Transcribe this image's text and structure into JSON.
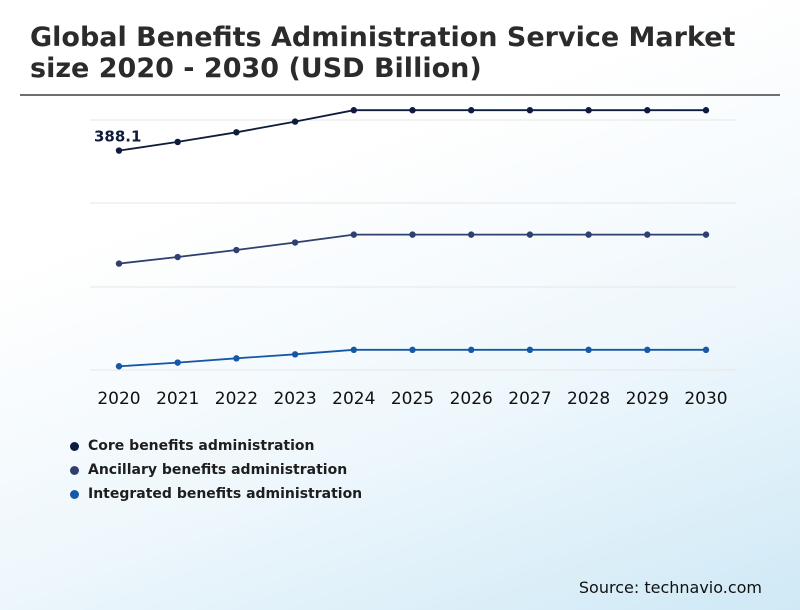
{
  "title": "Global Benefits Administration Service Market size 2020 - 2030 (USD Billion)",
  "source": "Source: technavio.com",
  "chart_data": {
    "type": "line",
    "title": "Global Benefits Administration Service Market size 2020 - 2030 (USD Billion)",
    "x": [
      "2020",
      "2021",
      "2022",
      "2023",
      "2024",
      "2025",
      "2026",
      "2027",
      "2028",
      "2029",
      "2030"
    ],
    "annotation": "388.1",
    "grid": true,
    "legend_position": "bottom-left",
    "series": [
      {
        "name": "Core benefits administration",
        "color": "#0d1b3c",
        "values": [
          388.1,
          396.5,
          405.9,
          416.3,
          427.4,
          427.4,
          427.4,
          427.4,
          427.4,
          427.4,
          427.4
        ]
      },
      {
        "name": "Ancillary benefits administration",
        "color": "#2f3f6f",
        "values": [
          278.0,
          284.4,
          291.2,
          298.5,
          306.2,
          306.2,
          306.2,
          306.2,
          306.2,
          306.2,
          306.2
        ]
      },
      {
        "name": "Integrated benefits administration",
        "color": "#1558a6",
        "values": [
          178.0,
          181.6,
          185.7,
          189.6,
          194.0,
          194.0,
          194.0,
          194.0,
          194.0,
          194.0,
          194.0
        ]
      }
    ]
  }
}
